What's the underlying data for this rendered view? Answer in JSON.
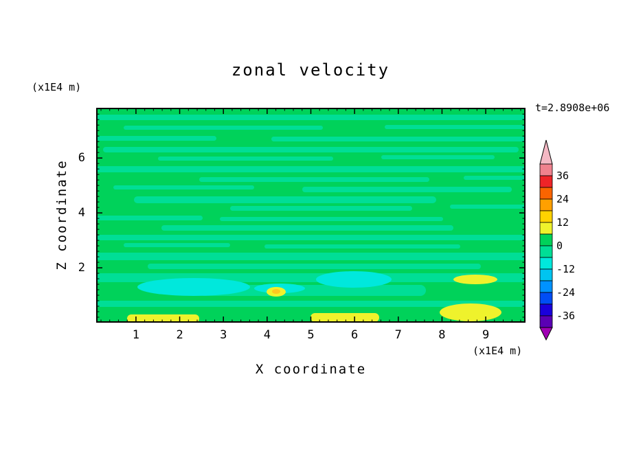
{
  "chart_data": {
    "type": "heatmap",
    "title": "zonal velocity",
    "time_annotation": "t=2.8908e+06",
    "xlabel": "X coordinate",
    "x_units_label": "(x1E4 m)",
    "ylabel": "Z coordinate",
    "y_units_label": "(x1E4 m)",
    "x_ticks": [
      "1",
      "2",
      "3",
      "4",
      "5",
      "6",
      "7",
      "8",
      "9"
    ],
    "y_ticks": [
      "2",
      "4",
      "6"
    ],
    "x_range": [
      0.09,
      9.91
    ],
    "y_range": [
      0,
      7.83
    ],
    "minor_tick_step": 0.2,
    "grid": false,
    "legend_position": "right-colorbar",
    "colorbar": {
      "orientation": "vertical",
      "levels": [
        -42,
        -36,
        -30,
        -24,
        -18,
        -12,
        -6,
        0,
        6,
        12,
        18,
        24,
        30,
        36,
        42
      ],
      "tick_labels": [
        "36",
        "24",
        "12",
        "0",
        "-12",
        "-24",
        "-36"
      ],
      "band_colors_top_to_bottom": [
        "#F0828E",
        "#EE2428",
        "#FA6400",
        "#FFA000",
        "#FFD200",
        "#EFF22C",
        "#00D25A",
        "#00DE96",
        "#00E8DC",
        "#00C4F0",
        "#0092FF",
        "#004EF5",
        "#1A00DC",
        "#5A00B4"
      ],
      "over_arrow_color": "#F4B8C4",
      "under_arrow_color": "#A000B4"
    },
    "field": {
      "description": "Zonal velocity cross-section: mostly uniform values in the 0 to 6 band (green) with thin horizontal streaks in the -6 to 0 band (mint), cyan patches (-12 to -6) near the lower boundary, and yellow/amber patches (6 to 18) along the bottom edge.",
      "background": "bg",
      "palette": {
        "bg": "#00D25A",
        "mint": "#00DE96",
        "cyan": "#00E8DC",
        "yellow": "#EFF22C",
        "amber": "#FFC81E"
      },
      "features": [
        [
          "streak",
          0,
          10,
          625,
          8,
          "mint"
        ],
        [
          "streak",
          40,
          26,
          290,
          6,
          "mint"
        ],
        [
          "streak",
          420,
          25,
          205,
          6,
          "mint"
        ],
        [
          "streak",
          0,
          41,
          175,
          7,
          "mint"
        ],
        [
          "streak",
          255,
          42,
          370,
          7,
          "mint"
        ],
        [
          "streak",
          10,
          57,
          605,
          8,
          "mint"
        ],
        [
          "streak",
          90,
          71,
          255,
          6,
          "mint"
        ],
        [
          "streak",
          415,
          69,
          165,
          6,
          "mint"
        ],
        [
          "streak",
          0,
          85,
          625,
          9,
          "mint"
        ],
        [
          "streak",
          150,
          101,
          335,
          7,
          "mint"
        ],
        [
          "streak",
          535,
          99,
          90,
          6,
          "mint"
        ],
        [
          "streak",
          25,
          113,
          205,
          6,
          "mint"
        ],
        [
          "streak",
          300,
          115,
          305,
          8,
          "mint"
        ],
        [
          "streak",
          55,
          129,
          440,
          10,
          "mint"
        ],
        [
          "streak",
          195,
          143,
          265,
          7,
          "mint"
        ],
        [
          "streak",
          515,
          141,
          110,
          6,
          "mint"
        ],
        [
          "streak",
          0,
          157,
          155,
          7,
          "mint"
        ],
        [
          "streak",
          180,
          159,
          325,
          6,
          "mint"
        ],
        [
          "streak",
          95,
          171,
          425,
          8,
          "mint"
        ],
        [
          "streak",
          0,
          185,
          625,
          8,
          "mint"
        ],
        [
          "streak",
          40,
          197,
          155,
          6,
          "mint"
        ],
        [
          "streak",
          245,
          199,
          285,
          6,
          "mint"
        ],
        [
          "streak",
          0,
          211,
          625,
          11,
          "mint"
        ],
        [
          "streak",
          75,
          227,
          485,
          8,
          "mint"
        ],
        [
          "streak",
          0,
          241,
          625,
          13,
          "mint"
        ],
        [
          "streak",
          150,
          258,
          330,
          16,
          "mint"
        ],
        [
          "streak",
          0,
          281,
          625,
          9,
          "mint"
        ],
        [
          "blob",
          60,
          248,
          164,
          26,
          "cyan"
        ],
        [
          "blob",
          320,
          238,
          110,
          24,
          "cyan"
        ],
        [
          "blob",
          230,
          256,
          74,
          14,
          "cyan"
        ],
        [
          "blob",
          520,
          243,
          64,
          14,
          "yellow"
        ],
        [
          "blob",
          500,
          285,
          90,
          26,
          "yellow"
        ],
        [
          "blob",
          248,
          261,
          28,
          14,
          "yellow"
        ],
        [
          "blob",
          256,
          264,
          12,
          7,
          "amber"
        ],
        [
          "streak",
          45,
          301,
          105,
          12,
          "yellow"
        ],
        [
          "streak",
          312,
          299,
          100,
          13,
          "yellow"
        ]
      ]
    }
  }
}
